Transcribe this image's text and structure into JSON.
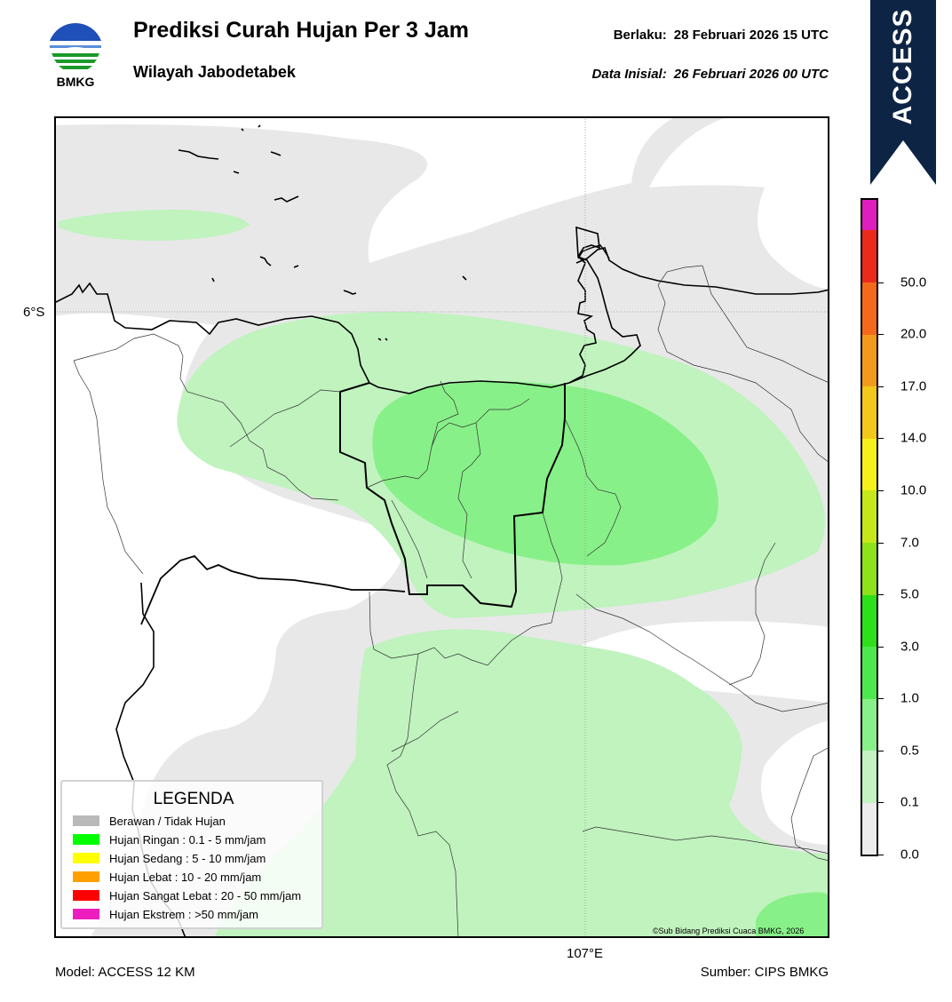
{
  "header": {
    "title": "Prediksi Curah Hujan Per 3 Jam",
    "subtitle": "Wilayah Jabodetabek",
    "valid_label": "Berlaku:",
    "valid_value": "28 Februari 2026 15 UTC",
    "init_label": "Data Inisial:",
    "init_value": "26 Februari 2026 00 UTC"
  },
  "logo": {
    "text": "BMKG",
    "icon": "bmkg-logo"
  },
  "model_badge": {
    "text": "ACCESS",
    "color": "#0d2444"
  },
  "map": {
    "lat_label": "6°S",
    "lon_label": "107°E",
    "copyright": "©Sub Bidang Prediksi Cuaca BMKG, 2026",
    "colors": {
      "none": "#e8e8e8",
      "very_light": "#c0f3be",
      "light": "#88f088"
    }
  },
  "legend": {
    "title": "LEGENDA",
    "items": [
      {
        "label": "Berawan / Tidak Hujan",
        "color": "#b9b9b9"
      },
      {
        "label": "Hujan Ringan : 0.1 - 5 mm/jam",
        "color": "#00ff00"
      },
      {
        "label": "Hujan Sedang : 5 - 10 mm/jam",
        "color": "#ffff00"
      },
      {
        "label": "Hujan Lebat : 10 - 20 mm/jam",
        "color": "#ffa000"
      },
      {
        "label": "Hujan Sangat Lebat : 20 - 50 mm/jam",
        "color": "#ff0000"
      },
      {
        "label": "Hujan Ekstrem : >50 mm/jam",
        "color": "#ee1ebe"
      }
    ]
  },
  "colorbar": {
    "labels": [
      "0.0",
      "0.1",
      "0.5",
      "1.0",
      "3.0",
      "5.0",
      "7.0",
      "10.0",
      "14.0",
      "17.0",
      "20.0",
      "50.0"
    ],
    "colors": [
      "#ececec",
      "#c4f2c0",
      "#88f088",
      "#4de84d",
      "#2ee01a",
      "#8ee21a",
      "#c6e81a",
      "#f4f01a",
      "#f4c81a",
      "#f49a1a",
      "#f46a1a",
      "#ec2a1a",
      "#e01ec0"
    ]
  },
  "footer": {
    "model": "Model: ACCESS 12 KM",
    "source": "Sumber: CIPS BMKG"
  }
}
